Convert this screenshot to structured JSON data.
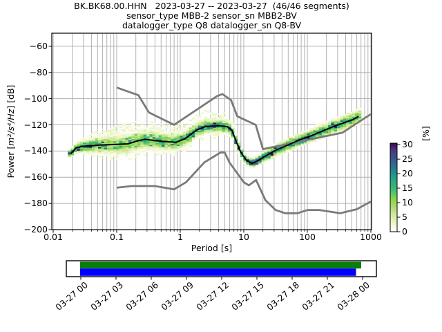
{
  "title": {
    "line1": "BK.BK68.00.HHN   2023-03-27 -- 2023-03-27  (46/46 segments)",
    "line2": "sensor_type MBB-2 sensor_sn MBB2-BV",
    "line3": "datalogger_type Q8 datalogger_sn Q8-BV"
  },
  "axes": {
    "xlabel": "Period [s]",
    "ylabel_prefix": "Power [",
    "ylabel_math": "m²/s⁴/Hz",
    "ylabel_suffix": "] [dB]",
    "x_tick_labels": [
      "0.01",
      "0.1",
      "1",
      "10",
      "100",
      "1000"
    ],
    "x_tick_values": [
      0.01,
      0.1,
      1,
      10,
      100,
      1000
    ],
    "y_tick_labels": [
      "−60",
      "−80",
      "−100",
      "−120",
      "−140",
      "−160",
      "−180",
      "−200"
    ],
    "y_tick_values": [
      -60,
      -80,
      -100,
      -120,
      -140,
      -160,
      -180,
      -200
    ]
  },
  "colorbar": {
    "label": "[%]",
    "tick_labels": [
      "0",
      "5",
      "10",
      "15",
      "20",
      "25",
      "30"
    ],
    "tick_values": [
      0,
      5,
      10,
      15,
      20,
      25,
      30
    ],
    "vmax": 30.5,
    "stops": [
      [
        0,
        "#ffffff"
      ],
      [
        1.5,
        "#f7fbe7"
      ],
      [
        4,
        "#e4f2b2"
      ],
      [
        6,
        "#cfe89b"
      ],
      [
        9,
        "#a5d964"
      ],
      [
        11,
        "#8ed645"
      ],
      [
        13,
        "#5ec962"
      ],
      [
        15,
        "#35b779"
      ],
      [
        18,
        "#26a784"
      ],
      [
        20,
        "#21918c"
      ],
      [
        23,
        "#2e6e8e"
      ],
      [
        25,
        "#39568c"
      ],
      [
        28,
        "#443a83"
      ],
      [
        30.5,
        "#440154"
      ]
    ]
  },
  "timeline": {
    "tick_labels": [
      "03-27 00",
      "03-27 03",
      "03-27 06",
      "03-27 09",
      "03-27 12",
      "03-27 15",
      "03-27 18",
      "03-27 21",
      "03-28 00"
    ],
    "coverage_color": "#0a7e0a",
    "used_color": "#0000ff"
  },
  "chart_data": {
    "type": "heatmap",
    "title": "BK.BK68.00.HHN 2023-03-27 -- 2023-03-27 (46/46 segments)",
    "xlabel": "Period [s]",
    "ylabel": "Power [m²/s⁴/Hz] [dB]",
    "x_scale": "log",
    "xlim": [
      0.01,
      1000
    ],
    "ylim": [
      -200,
      -50
    ],
    "grid": true,
    "colorbar_label": "[%]",
    "colorbar_range": [
      0,
      30
    ],
    "mean_psd": {
      "periods": [
        0.019,
        0.023,
        0.03,
        0.05,
        0.09,
        0.15,
        0.22,
        0.28,
        0.4,
        0.6,
        0.86,
        1.2,
        1.8,
        2.5,
        4.0,
        5.5,
        6.5,
        7.5,
        9,
        11,
        13.5,
        16.5,
        21,
        33,
        50,
        74,
        114,
        174,
        263,
        400,
        520,
        640
      ],
      "db": [
        -142,
        -137.5,
        -136.3,
        -135.5,
        -135,
        -134.5,
        -132,
        -131,
        -132,
        -132.8,
        -133.3,
        -130.5,
        -124,
        -121.3,
        -120.7,
        -121.3,
        -124,
        -132,
        -141,
        -147,
        -149.5,
        -147.5,
        -144.3,
        -139,
        -135.3,
        -131.6,
        -128.4,
        -124.7,
        -121.1,
        -118,
        -116,
        -113.5
      ]
    },
    "noise_models": {
      "nhnm": {
        "periods": [
          0.1,
          0.22,
          0.32,
          0.8,
          3.8,
          4.6,
          6.3,
          7.9,
          15.4,
          20.0,
          354.8,
          1000
        ],
        "db": [
          -91.5,
          -97.4,
          -110.5,
          -120.0,
          -98.0,
          -96.5,
          -101.0,
          -113.5,
          -120.0,
          -138.5,
          -126.0,
          -111.8
        ]
      },
      "nlnm": {
        "periods": [
          0.1,
          0.17,
          0.4,
          0.8,
          1.24,
          2.4,
          4.3,
          5.0,
          6.0,
          10.0,
          12.0,
          15.6,
          21.9,
          31.6,
          45.0,
          70.0,
          101.0,
          154.0,
          328.0,
          600.0,
          1000
        ],
        "db": [
          -168.0,
          -166.7,
          -166.7,
          -169.2,
          -163.7,
          -148.6,
          -141.1,
          -141.1,
          -149.0,
          -163.8,
          -166.2,
          -162.1,
          -177.5,
          -185.0,
          -187.5,
          -187.5,
          -185.0,
          -185.0,
          -187.5,
          -184.4,
          -178.5
        ]
      }
    },
    "histogram": {
      "period_start": 0.018,
      "period_end": 680,
      "db_bin_width": 1,
      "columns_per_decade": 21,
      "profile_periods": [
        0.018,
        0.03,
        0.06,
        0.15,
        0.4,
        0.8,
        1.5,
        3,
        5.5,
        8,
        12,
        18,
        30,
        80,
        200,
        450,
        680
      ],
      "center_percent": [
        29,
        20,
        14,
        13,
        13,
        14,
        17,
        18,
        18,
        24,
        28,
        26,
        20,
        18,
        17,
        16,
        14
      ],
      "sigma_db": [
        1.2,
        2.2,
        3.2,
        3.8,
        3.6,
        3.2,
        2.8,
        2.6,
        2.4,
        1.8,
        1.5,
        1.7,
        2.2,
        2.4,
        2.6,
        2.8,
        2.6
      ],
      "upper_smear_db": [
        0,
        2,
        5,
        7,
        6,
        5,
        5,
        6,
        4,
        0,
        0,
        0,
        0,
        0,
        0,
        0,
        0
      ]
    },
    "style": {
      "grid_color": "#b0b0b0",
      "noise_model_color": "#7a7a7a",
      "mean_line_color": "#000000"
    }
  }
}
